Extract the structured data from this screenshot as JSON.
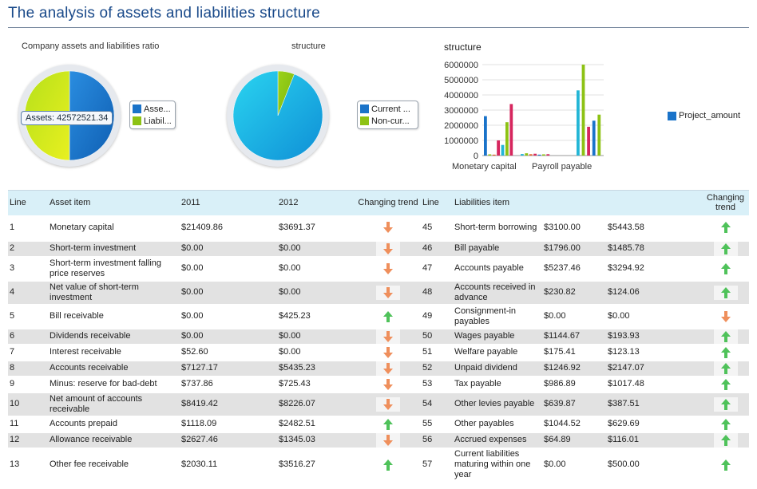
{
  "title": "The analysis of assets and liabilities structure",
  "charts": {
    "pie1": {
      "caption": "Company assets and liabilities ratio",
      "legend": [
        {
          "label": "Asse...",
          "color": "#1a73c9"
        },
        {
          "label": "Liabil...",
          "color": "#8dc214"
        }
      ],
      "tooltip": "Assets: 42572521.34"
    },
    "pie2": {
      "caption": "structure",
      "legend": [
        {
          "label": "Current ...",
          "color": "#1a73c9"
        },
        {
          "label": "Non-cur...",
          "color": "#8dc214"
        }
      ]
    }
  },
  "chart_data": [
    {
      "type": "pie",
      "title": "Company assets and liabilities ratio",
      "labels": [
        "Assets",
        "Liabilities"
      ],
      "values": [
        50,
        50
      ],
      "colors": [
        "#1a73c9",
        "#8dc214"
      ]
    },
    {
      "type": "pie",
      "title": "structure",
      "labels": [
        "Current assets",
        "Non-current assets"
      ],
      "values": [
        94,
        6
      ],
      "colors": [
        "#1aa9e0",
        "#8dc214"
      ]
    },
    {
      "type": "bar",
      "title": "structure",
      "categories": [
        "Monetary capital",
        "Payroll payable"
      ],
      "ylim": [
        0,
        6000000
      ],
      "yticks": [
        "6000000",
        "5000000",
        "4000000",
        "3000000",
        "2000000",
        "1000000",
        "0"
      ],
      "legend": "Project_amount",
      "legend_color": "#1a73c9",
      "groups": [
        {
          "values": [
            2600000,
            80000,
            60000,
            1000000,
            700000,
            2200000,
            3400000
          ],
          "colors": [
            "#1a73c9",
            "#8dc214",
            "#e6632d",
            "#d6265e",
            "#24b6d6",
            "#8dc214",
            "#d6265e"
          ]
        },
        {
          "values": [
            100000,
            150000,
            90000,
            120000,
            60000,
            80000,
            90000
          ],
          "colors": [
            "#24b6d6",
            "#8dc214",
            "#e6632d",
            "#d6265e",
            "#1a73c9",
            "#8dc214",
            "#d6265e"
          ]
        },
        {
          "values": [
            4300000,
            6000000,
            1900000,
            2300000,
            2700000
          ],
          "colors": [
            "#24b6d6",
            "#8dc214",
            "#d6265e",
            "#1a73c9",
            "#8dc214"
          ]
        }
      ]
    }
  ],
  "table": {
    "headers": {
      "line": "Line",
      "asset_item": "Asset item",
      "y2011": "2011",
      "y2012": "2012",
      "trend": "Changing trend",
      "line2": "Line",
      "liab_item": "Liabilities item",
      "trend2": "Changing trend"
    },
    "rows": [
      {
        "l": "1",
        "a": "Monetary capital",
        "a11": "$21409.86",
        "a12": "$3691.37",
        "at": "down",
        "l2": "45",
        "b": "Short-term borrowing",
        "b11": "$3100.00",
        "b12": "$5443.58",
        "bt": "up"
      },
      {
        "l": "2",
        "a": "Short-term investment",
        "a11": "$0.00",
        "a12": "$0.00",
        "at": "down",
        "l2": "46",
        "b": "Bill payable",
        "b11": "$1796.00",
        "b12": "$1485.78",
        "bt": "up"
      },
      {
        "l": "3",
        "a": "Short-term investment falling price reserves",
        "a11": "$0.00",
        "a12": "$0.00",
        "at": "down",
        "l2": "47",
        "b": "Accounts payable",
        "b11": "$5237.46",
        "b12": "$3294.92",
        "bt": "up"
      },
      {
        "l": "4",
        "a": "Net value of short-term investment",
        "a11": "$0.00",
        "a12": "$0.00",
        "at": "down",
        "l2": "48",
        "b": "Accounts received in advance",
        "b11": "$230.82",
        "b12": "$124.06",
        "bt": "up"
      },
      {
        "l": "5",
        "a": "Bill receivable",
        "a11": "$0.00",
        "a12": "$425.23",
        "at": "up",
        "l2": "49",
        "b": "Consignment-in payables",
        "b11": "$0.00",
        "b12": "$0.00",
        "bt": "down"
      },
      {
        "l": "6",
        "a": "Dividends receivable",
        "a11": "$0.00",
        "a12": "$0.00",
        "at": "down",
        "l2": "50",
        "b": "Wages payable",
        "b11": "$1144.67",
        "b12": "$193.93",
        "bt": "up"
      },
      {
        "l": "7",
        "a": "Interest receivable",
        "a11": "$52.60",
        "a12": "$0.00",
        "at": "down",
        "l2": "51",
        "b": "Welfare payable",
        "b11": "$175.41",
        "b12": "$123.13",
        "bt": "up"
      },
      {
        "l": "8",
        "a": "Accounts receivable",
        "a11": "$7127.17",
        "a12": "$5435.23",
        "at": "down",
        "l2": "52",
        "b": "Unpaid dividend",
        "b11": "$1246.92",
        "b12": "$2147.07",
        "bt": "up"
      },
      {
        "l": "9",
        "a": "Minus: reserve for bad-debt",
        "a11": "$737.86",
        "a12": "$725.43",
        "at": "down",
        "l2": "53",
        "b": "Tax payable",
        "b11": "$986.89",
        "b12": "$1017.48",
        "bt": "up"
      },
      {
        "l": "10",
        "a": "Net amount of accounts receivable",
        "a11": "$8419.42",
        "a12": "$8226.07",
        "at": "down",
        "l2": "54",
        "b": "Other levies payable",
        "b11": "$639.87",
        "b12": "$387.51",
        "bt": "up"
      },
      {
        "l": "11",
        "a": "Accounts prepaid",
        "a11": "$1118.09",
        "a12": "$2482.51",
        "at": "up",
        "l2": "55",
        "b": "Other payables",
        "b11": "$1044.52",
        "b12": "$629.69",
        "bt": "up"
      },
      {
        "l": "12",
        "a": "Allowance receivable",
        "a11": "$2627.46",
        "a12": "$1345.03",
        "at": "down",
        "l2": "56",
        "b": "Accrued expenses",
        "b11": "$64.89",
        "b12": "$116.01",
        "bt": "up"
      },
      {
        "l": "13",
        "a": "Other fee receivable",
        "a11": "$2030.11",
        "a12": "$3516.27",
        "at": "up",
        "l2": "57",
        "b": "Current liabilities maturing within one year",
        "b11": "$0.00",
        "b12": "$500.00",
        "bt": "up"
      }
    ]
  }
}
